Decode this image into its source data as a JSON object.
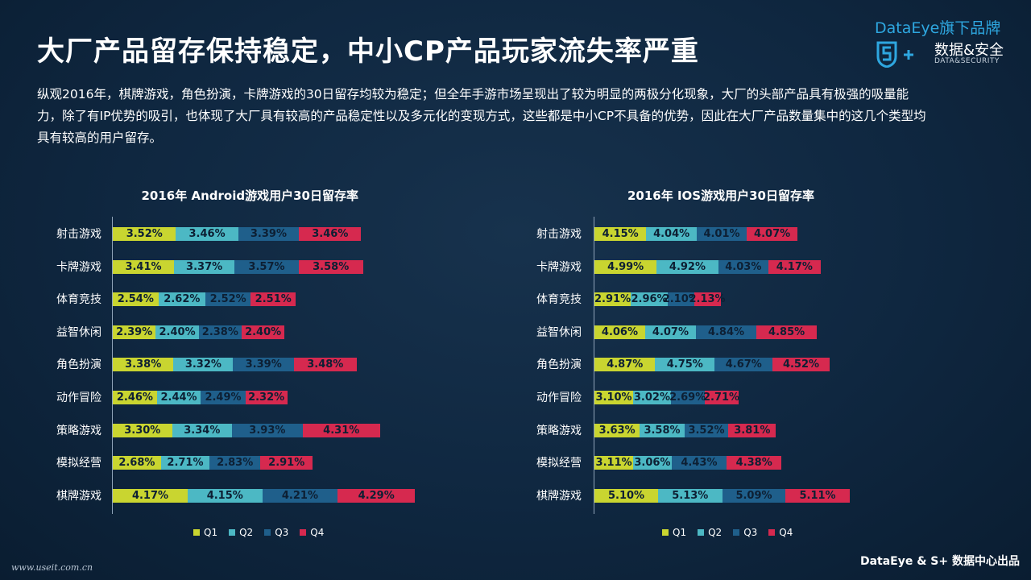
{
  "title": "大厂产品留存保持稳定，中小CP产品玩家流失率严重",
  "brand": {
    "top": "DataEye旗下品牌",
    "main": "数据&安全",
    "sub": "DATA&SECURITY"
  },
  "intro": "纵观2016年，棋牌游戏，角色扮演，卡牌游戏的30日留存均较为稳定；但全年手游市场呈现出了较为明显的两极分化现象，大厂的头部产品具有极强的吸量能力，除了有IP优势的吸引，也体现了大厂具有较高的产品稳定性以及多元化的变现方式，这些都是中小CP不具备的优势，因此在大厂产品数量集中的这几个类型均具有较高的用户留存。",
  "watermark": "www.useit.com.cn",
  "footer": "DataEye & S+ 数据中心出品",
  "colors": {
    "Q1": "#c9d530",
    "Q2": "#4cb8c4",
    "Q3": "#1f5f8b",
    "Q4": "#d6294f"
  },
  "chart_data": [
    {
      "type": "bar",
      "title": "2016年 Android游戏用户30日留存率",
      "categories": [
        "射击游戏",
        "卡牌游戏",
        "体育竞技",
        "益智休闲",
        "角色扮演",
        "动作冒险",
        "策略游戏",
        "模拟经营",
        "棋牌游戏"
      ],
      "series": [
        {
          "name": "Q1",
          "values": [
            3.52,
            3.41,
            2.54,
            2.39,
            3.38,
            2.46,
            3.3,
            2.68,
            4.17
          ]
        },
        {
          "name": "Q2",
          "values": [
            3.46,
            3.37,
            2.62,
            2.4,
            3.32,
            2.44,
            3.34,
            2.71,
            4.15
          ]
        },
        {
          "name": "Q3",
          "values": [
            3.39,
            3.57,
            2.52,
            2.38,
            3.39,
            2.49,
            3.93,
            2.83,
            4.21
          ]
        },
        {
          "name": "Q4",
          "values": [
            3.46,
            3.58,
            2.51,
            2.4,
            3.48,
            2.32,
            4.31,
            2.91,
            4.29
          ]
        }
      ],
      "stacked": true,
      "orientation": "horizontal",
      "legend": "bottom"
    },
    {
      "type": "bar",
      "title": "2016年 IOS游戏用户30日留存率",
      "categories": [
        "射击游戏",
        "卡牌游戏",
        "体育竞技",
        "益智休闲",
        "角色扮演",
        "动作冒险",
        "策略游戏",
        "模拟经营",
        "棋牌游戏"
      ],
      "series": [
        {
          "name": "Q1",
          "values": [
            4.15,
            4.99,
            2.91,
            4.06,
            4.87,
            3.1,
            3.63,
            3.11,
            5.1
          ]
        },
        {
          "name": "Q2",
          "values": [
            4.04,
            4.92,
            2.96,
            4.07,
            4.75,
            3.02,
            3.58,
            3.06,
            5.13
          ]
        },
        {
          "name": "Q3",
          "values": [
            4.01,
            4.03,
            2.1,
            4.84,
            4.67,
            2.69,
            3.52,
            4.43,
            5.09
          ]
        },
        {
          "name": "Q4",
          "values": [
            4.07,
            4.17,
            2.13,
            4.85,
            4.52,
            2.71,
            3.81,
            4.38,
            5.11
          ]
        }
      ],
      "stacked": true,
      "orientation": "horizontal",
      "legend": "bottom"
    }
  ]
}
